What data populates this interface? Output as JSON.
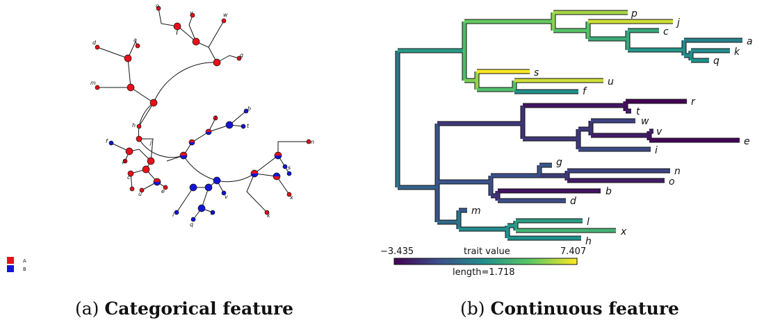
{
  "panel_a": {
    "legend": [
      {
        "label": "A",
        "color": "#e8101a"
      },
      {
        "label": "B",
        "color": "#1414d8"
      }
    ],
    "tip_labels": [
      "o",
      "y",
      "w",
      "d",
      "a",
      "g",
      "m",
      "h",
      "l",
      "f",
      "p",
      "c",
      "u",
      "e",
      "j",
      "s",
      "b",
      "t",
      "i",
      "n",
      "k",
      "x",
      "v",
      "q",
      "r"
    ],
    "caption_prefix": "(a)",
    "caption_bold": "Categorical feature"
  },
  "panel_b": {
    "colorbar": {
      "min_label": "−3.435",
      "title": "trait value",
      "max_label": "7.407",
      "length_label": "length=1.718"
    },
    "tips": [
      {
        "label": "p",
        "value": 5.9
      },
      {
        "label": "j",
        "value": 6.6
      },
      {
        "label": "c",
        "value": 3.0
      },
      {
        "label": "a",
        "value": 1.3
      },
      {
        "label": "k",
        "value": 1.8
      },
      {
        "label": "q",
        "value": 2.0
      },
      {
        "label": "s",
        "value": 7.4
      },
      {
        "label": "u",
        "value": 6.6
      },
      {
        "label": "f",
        "value": 2.0
      },
      {
        "label": "r",
        "value": -3.4
      },
      {
        "label": "t",
        "value": -2.4
      },
      {
        "label": "w",
        "value": -1.2
      },
      {
        "label": "v",
        "value": -2.2
      },
      {
        "label": "e",
        "value": -3.3
      },
      {
        "label": "i",
        "value": -1.0
      },
      {
        "label": "g",
        "value": -0.5
      },
      {
        "label": "n",
        "value": -1.2
      },
      {
        "label": "o",
        "value": -2.5
      },
      {
        "label": "b",
        "value": -2.8
      },
      {
        "label": "d",
        "value": -0.9
      },
      {
        "label": "m",
        "value": -0.5
      },
      {
        "label": "l",
        "value": 2.5
      },
      {
        "label": "x",
        "value": 3.6
      },
      {
        "label": "h",
        "value": 2.0
      }
    ],
    "caption_prefix": "(b)",
    "caption_bold": "Continuous feature"
  }
}
